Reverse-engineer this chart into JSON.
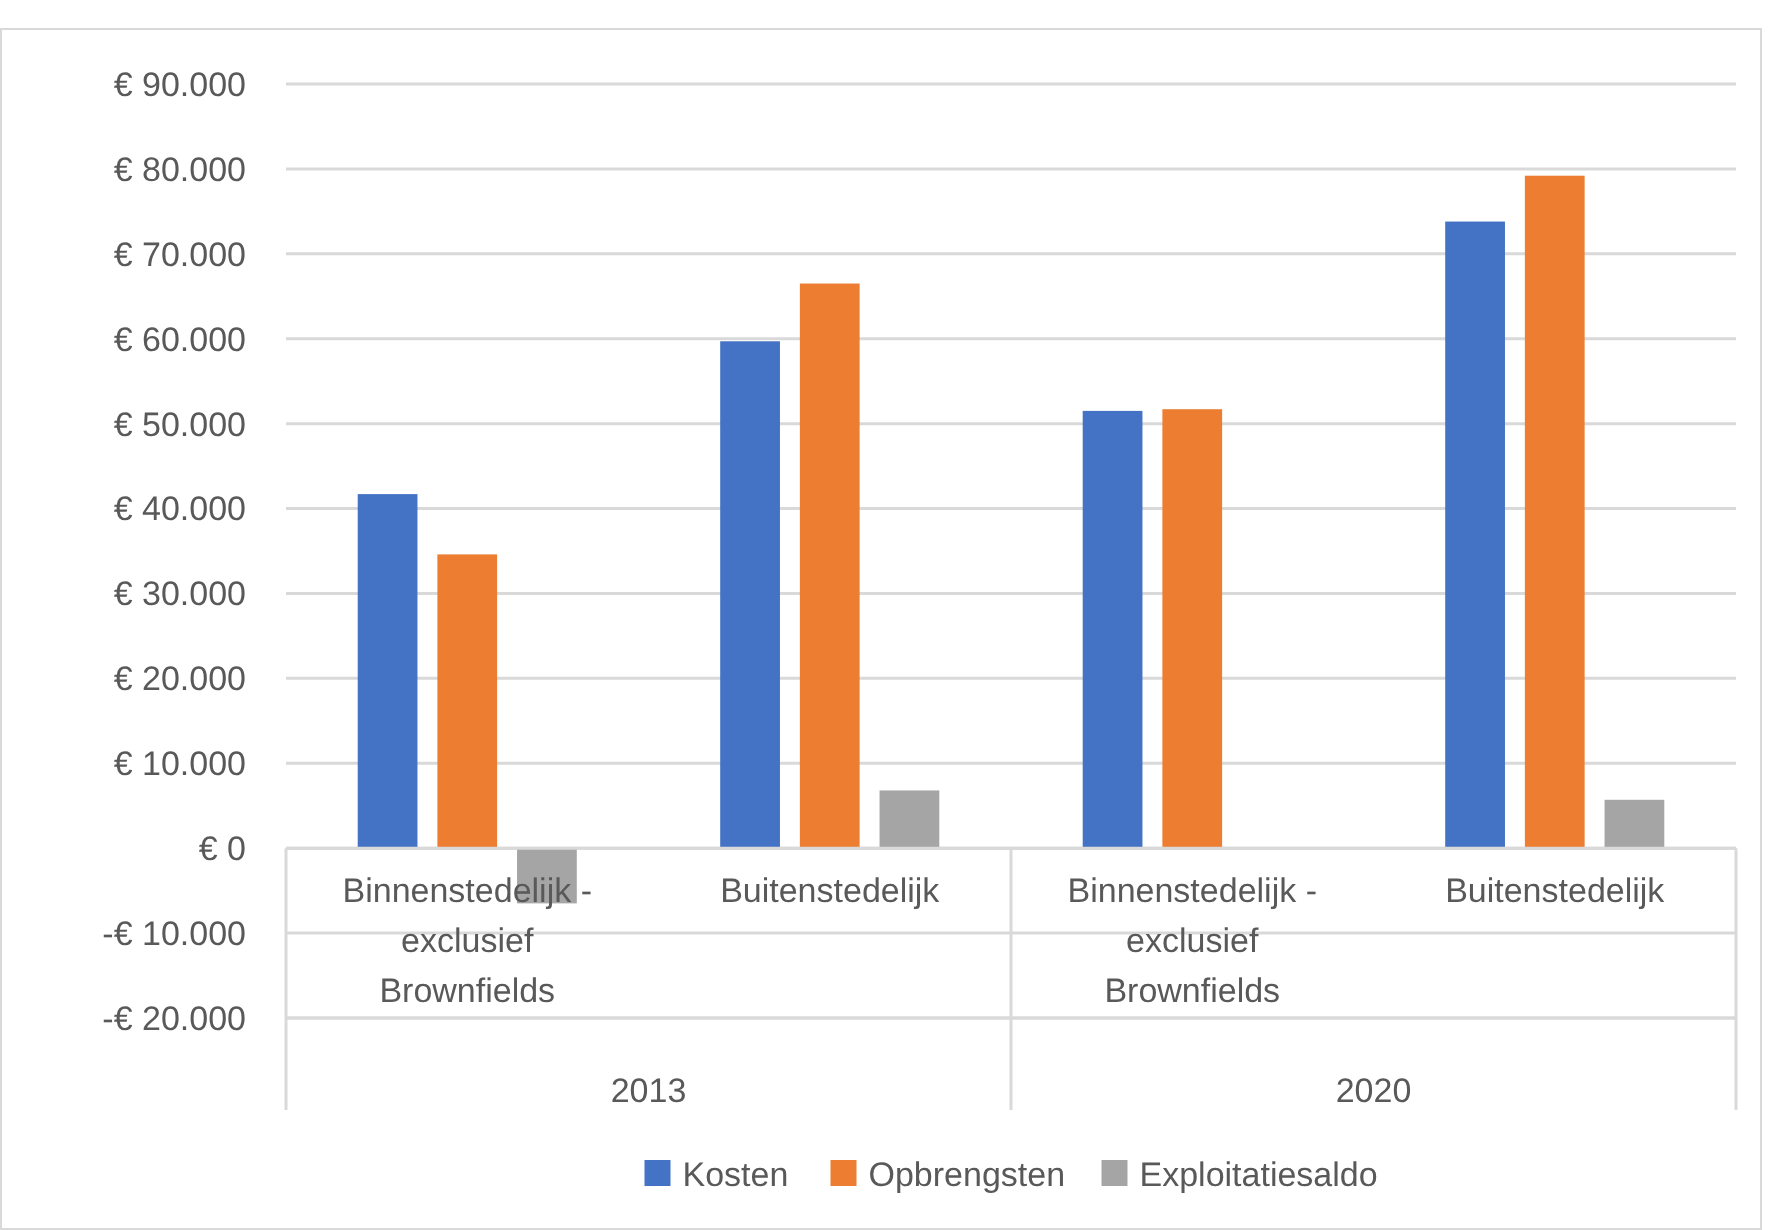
{
  "chart_data": {
    "type": "bar",
    "categories": [
      "Binnenstedelijk - exclusief Brownfields",
      "Buitenstedelijk",
      "Binnenstedelijk - exclusief Brownfields",
      "Buitenstedelijk"
    ],
    "series": [
      {
        "name": "Kosten",
        "color": "#4472c4",
        "values": [
          41700,
          59700,
          51500,
          73800
        ]
      },
      {
        "name": "Opbrengsten",
        "color": "#ed7d31",
        "values": [
          34600,
          66500,
          51700,
          79200
        ]
      },
      {
        "name": "Exploitatiesaldo",
        "color": "#a5a5a5",
        "values": [
          -6500,
          6800,
          0,
          5700
        ]
      }
    ],
    "annotations": [
      "2013",
      "2020"
    ],
    "ylim": [
      -20000,
      90000
    ],
    "yticks": [
      {
        "value": -20000,
        "label": "-€ 20.000"
      },
      {
        "value": -10000,
        "label": "-€ 10.000"
      },
      {
        "value": 0,
        "label": "€ 0"
      },
      {
        "value": 10000,
        "label": "€ 10.000"
      },
      {
        "value": 20000,
        "label": "€ 20.000"
      },
      {
        "value": 30000,
        "label": "€ 30.000"
      },
      {
        "value": 40000,
        "label": "€ 40.000"
      },
      {
        "value": 50000,
        "label": "€ 50.000"
      },
      {
        "value": 60000,
        "label": "€ 60.000"
      },
      {
        "value": 70000,
        "label": "€ 70.000"
      },
      {
        "value": 80000,
        "label": "€ 80.000"
      },
      {
        "value": 90000,
        "label": "€ 90.000"
      }
    ],
    "grid": "y",
    "legend": "bottom"
  }
}
